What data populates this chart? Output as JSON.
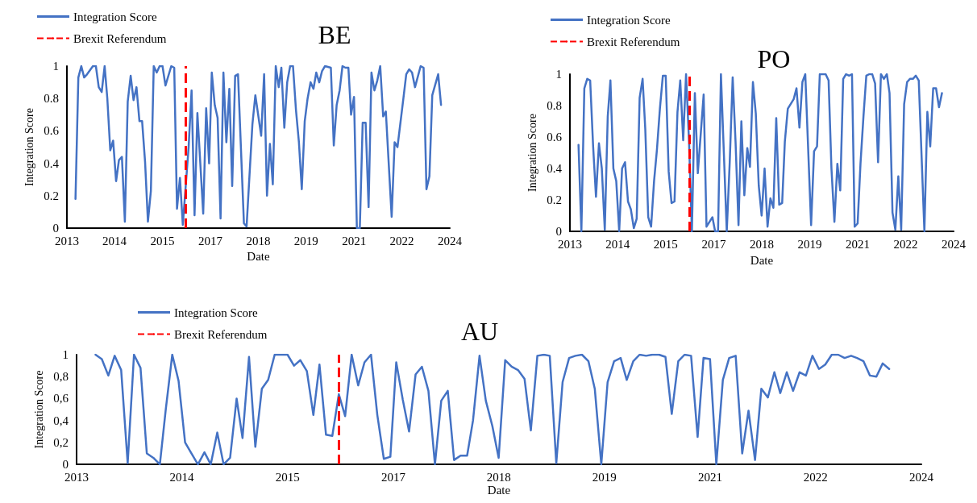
{
  "chart_data": [
    {
      "type": "line",
      "title": "BE",
      "xlabel": "Date",
      "ylabel": "Integration Score",
      "xlim": [
        "2013",
        "2024"
      ],
      "xticks": [
        "2013",
        {
          "value": "2014-05-16",
          "label": "2014"
        },
        {
          "value": "2015-10-01",
          "label": "2015"
        },
        {
          "value": "2017-02-15",
          "label": "2017"
        },
        {
          "value": "2018-07-02",
          "label": "2018"
        },
        {
          "value": "2019-11-16",
          "label": "2019"
        },
        {
          "value": "2021-04-02",
          "label": "2021"
        },
        {
          "value": "2022-08-16",
          "label": "2022"
        },
        "2024"
      ],
      "ylim": [
        0,
        1
      ],
      "yticks": [
        0,
        0.2,
        0.4,
        0.6,
        0.8,
        1
      ],
      "grid": false,
      "legend": "top left",
      "marker": "none",
      "line_style": "solid",
      "series": [
        {
          "name": "Integration Score",
          "color": "#4472c4",
          "x": [
            "2013-04",
            "2013-05",
            "2013-06",
            "2013-07",
            "2013-08",
            "2013-10",
            "2013-11",
            "2013-12",
            "2014-01",
            "2014-02",
            "2014-03",
            "2014-04",
            "2014-05",
            "2014-06",
            "2014-07",
            "2014-08",
            "2014-09",
            "2014-10",
            "2014-11",
            "2014-12",
            "2015-01",
            "2015-02",
            "2015-03",
            "2015-04",
            "2015-05",
            "2015-06",
            "2015-07",
            "2015-08",
            "2015-09",
            "2015-10",
            "2015-11",
            "2016-01",
            "2016-02",
            "2016-03",
            "2016-04",
            "2016-05",
            "2016-07",
            "2016-08",
            "2016-09",
            "2016-10",
            "2016-12",
            "2017-01",
            "2017-02",
            "2017-03",
            "2017-04",
            "2017-05",
            "2017-06",
            "2017-07",
            "2017-08",
            "2017-09",
            "2017-10",
            "2017-11",
            "2017-12",
            "2018-02",
            "2018-03",
            "2018-05",
            "2018-06",
            "2018-08",
            "2018-09",
            "2018-10",
            "2018-11",
            "2018-12",
            "2019-01",
            "2019-02",
            "2019-03",
            "2019-04",
            "2019-05",
            "2019-06",
            "2019-07",
            "2019-08",
            "2019-09",
            "2019-10",
            "2019-11",
            "2019-12",
            "2020-01",
            "2020-02",
            "2020-03",
            "2020-04",
            "2020-05",
            "2020-06",
            "2020-08",
            "2020-09",
            "2020-10",
            "2020-11",
            "2020-12",
            "2021-01",
            "2021-02",
            "2021-03",
            "2021-04",
            "2021-05",
            "2021-06",
            "2021-07",
            "2021-08",
            "2021-09",
            "2021-10",
            "2021-11",
            "2021-12",
            "2022-01",
            "2022-02",
            "2022-03",
            "2022-05",
            "2022-06",
            "2022-07",
            "2022-09",
            "2022-10",
            "2022-11",
            "2022-12",
            "2023-01",
            "2023-03",
            "2023-04",
            "2023-05",
            "2023-06",
            "2023-07",
            "2023-09",
            "2023-10"
          ],
          "values": [
            0.18,
            0.93,
            1.0,
            0.93,
            0.95,
            1.0,
            1.0,
            0.87,
            0.84,
            1.0,
            0.8,
            0.48,
            0.54,
            0.29,
            0.42,
            0.44,
            0.04,
            0.78,
            0.94,
            0.79,
            0.87,
            0.66,
            0.66,
            0.41,
            0.04,
            0.23,
            1.0,
            0.96,
            1.0,
            1.0,
            0.88,
            1.0,
            0.99,
            0.12,
            0.31,
            0.02,
            0.5,
            0.85,
            0.08,
            0.71,
            0.09,
            0.74,
            0.4,
            0.96,
            0.76,
            0.68,
            0.06,
            0.96,
            0.53,
            0.86,
            0.26,
            0.94,
            0.95,
            0.03,
            0.01,
            0.64,
            0.82,
            0.57,
            0.95,
            0.2,
            0.52,
            0.27,
            1.0,
            0.87,
            0.99,
            0.62,
            0.9,
            1.0,
            1.0,
            0.73,
            0.53,
            0.24,
            0.66,
            0.8,
            0.9,
            0.86,
            0.96,
            0.9,
            0.97,
            1.0,
            0.99,
            0.51,
            0.76,
            0.85,
            1.0,
            0.99,
            0.99,
            0.7,
            0.81,
            0.0,
            0.0,
            0.65,
            0.65,
            0.13,
            0.96,
            0.85,
            0.91,
            1.0,
            0.69,
            0.72,
            0.07,
            0.53,
            0.5,
            0.8,
            0.95,
            0.98,
            0.96,
            0.87,
            1.0,
            0.99,
            0.24,
            0.32,
            0.82,
            0.95,
            0.76
          ]
        }
      ],
      "ref_lines": [
        {
          "axis": "x",
          "value": "2016-06",
          "label": "Brexit Referendum",
          "color": "#ff0000",
          "line_style": "dashed"
        }
      ]
    },
    {
      "type": "line",
      "title": "PO",
      "xlabel": "Date",
      "ylabel": "Integration Score",
      "xlim": [
        "2013",
        "2024"
      ],
      "xticks": [
        "2013",
        {
          "value": "2014-05-16",
          "label": "2014"
        },
        {
          "value": "2015-10-01",
          "label": "2015"
        },
        {
          "value": "2017-02-15",
          "label": "2017"
        },
        {
          "value": "2018-07-02",
          "label": "2018"
        },
        {
          "value": "2019-11-16",
          "label": "2019"
        },
        {
          "value": "2021-04-02",
          "label": "2021"
        },
        {
          "value": "2022-08-16",
          "label": "2022"
        },
        "2024"
      ],
      "ylim": [
        0,
        1
      ],
      "yticks": [
        0,
        0.2,
        0.4,
        0.6,
        0.8,
        1
      ],
      "grid": false,
      "legend": "top left",
      "marker": "none",
      "line_style": "solid",
      "series": [
        {
          "name": "Integration Score",
          "color": "#4472c4",
          "x": [
            "2013-04",
            "2013-05",
            "2013-06",
            "2013-07",
            "2013-08",
            "2013-09",
            "2013-10",
            "2013-11",
            "2013-12",
            "2014-01",
            "2014-02",
            "2014-03",
            "2014-04",
            "2014-05",
            "2014-06",
            "2014-07",
            "2014-08",
            "2014-09",
            "2014-10",
            "2014-11",
            "2014-12",
            "2015-01",
            "2015-02",
            "2015-03",
            "2015-04",
            "2015-05",
            "2015-06",
            "2015-07",
            "2015-08",
            "2015-09",
            "2015-10",
            "2015-11",
            "2015-12",
            "2016-01",
            "2016-02",
            "2016-03",
            "2016-04",
            "2016-05",
            "2016-06",
            "2016-07",
            "2016-08",
            "2016-09",
            "2016-11",
            "2016-12",
            "2017-02",
            "2017-03",
            "2017-04",
            "2017-05",
            "2017-07",
            "2017-08",
            "2017-09",
            "2017-10",
            "2017-11",
            "2017-12",
            "2018-01",
            "2018-02",
            "2018-03",
            "2018-04",
            "2018-05",
            "2018-06",
            "2018-07",
            "2018-08",
            "2018-09",
            "2018-10",
            "2018-11",
            "2018-12",
            "2019-01",
            "2019-02",
            "2019-03",
            "2019-04",
            "2019-06",
            "2019-07",
            "2019-08",
            "2019-09",
            "2019-10",
            "2019-12",
            "2020-01",
            "2020-02",
            "2020-03",
            "2020-05",
            "2020-06",
            "2020-07",
            "2020-08",
            "2020-09",
            "2020-10",
            "2020-11",
            "2020-12",
            "2021-01",
            "2021-02",
            "2021-03",
            "2021-04",
            "2021-05",
            "2021-06",
            "2021-07",
            "2021-08",
            "2021-09",
            "2021-10",
            "2021-11",
            "2021-12",
            "2022-01",
            "2022-02",
            "2022-03",
            "2022-04",
            "2022-05",
            "2022-06",
            "2022-07",
            "2022-08",
            "2022-09",
            "2022-10",
            "2022-11",
            "2022-12",
            "2023-01",
            "2023-03",
            "2023-04",
            "2023-05",
            "2023-06",
            "2023-07",
            "2023-08",
            "2023-09"
          ],
          "values": [
            0.55,
            0.0,
            0.91,
            0.97,
            0.96,
            0.54,
            0.22,
            0.56,
            0.4,
            0.01,
            0.73,
            0.96,
            0.4,
            0.32,
            0.0,
            0.4,
            0.44,
            0.19,
            0.14,
            0.02,
            0.08,
            0.85,
            0.97,
            0.65,
            0.09,
            0.03,
            0.32,
            0.52,
            0.78,
            0.99,
            0.99,
            0.38,
            0.18,
            0.19,
            0.76,
            0.96,
            0.58,
            1.0,
            0.57,
            0.0,
            0.88,
            0.37,
            0.87,
            0.03,
            0.09,
            0.0,
            0.0,
            1.0,
            0.0,
            0.44,
            0.98,
            0.57,
            0.04,
            0.7,
            0.23,
            0.53,
            0.41,
            0.95,
            0.75,
            0.29,
            0.1,
            0.4,
            0.03,
            0.21,
            0.15,
            0.72,
            0.17,
            0.18,
            0.57,
            0.78,
            0.84,
            0.91,
            0.66,
            0.95,
            1.0,
            0.04,
            0.51,
            0.54,
            1.0,
            1.0,
            0.96,
            0.4,
            0.06,
            0.43,
            0.26,
            0.97,
            1.0,
            0.99,
            1.0,
            0.03,
            0.05,
            0.43,
            0.73,
            0.99,
            1.0,
            1.0,
            0.94,
            0.44,
            1.0,
            0.97,
            1.0,
            0.88,
            0.12,
            0.01,
            0.35,
            0.01,
            0.81,
            0.95,
            0.97,
            0.97,
            0.99,
            0.96,
            0.0,
            0.76,
            0.54,
            0.91,
            0.91,
            0.79,
            0.88
          ]
        }
      ],
      "ref_lines": [
        {
          "axis": "x",
          "value": "2016-06",
          "label": "Brexit Referendum",
          "color": "#ff0000",
          "line_style": "dashed"
        }
      ]
    },
    {
      "type": "line",
      "title": "AU",
      "xlabel": "Date",
      "ylabel": "Integration Score",
      "xlim": [
        "2013",
        "2024"
      ],
      "xticks": [
        "2013",
        {
          "value": "2014-05-16",
          "label": "2014"
        },
        {
          "value": "2015-10-01",
          "label": "2015"
        },
        {
          "value": "2017-02-15",
          "label": "2017"
        },
        {
          "value": "2018-07-02",
          "label": "2018"
        },
        {
          "value": "2019-11-16",
          "label": "2019"
        },
        {
          "value": "2021-04-02",
          "label": "2021"
        },
        {
          "value": "2022-08-16",
          "label": "2022"
        },
        "2024"
      ],
      "ylim": [
        0,
        1
      ],
      "yticks": [
        0,
        {
          "value": 0.2,
          "label": "0,2"
        },
        {
          "value": 0.4,
          "label": "0,4"
        },
        {
          "value": 0.6,
          "label": "0,6"
        },
        {
          "value": 0.8,
          "label": "0,8"
        },
        1
      ],
      "grid": false,
      "legend": "top left",
      "marker": "none",
      "line_style": "solid",
      "series": [
        {
          "name": "Integration Score",
          "color": "#4472c4",
          "x": [
            "2013-04",
            "2013-05",
            "2013-06",
            "2013-07",
            "2013-08",
            "2013-09",
            "2013-10",
            "2013-11",
            "2013-12",
            "2014-01",
            "2014-02",
            "2014-03",
            "2014-04",
            "2014-05",
            "2014-06",
            "2014-07",
            "2014-08",
            "2014-09",
            "2014-10",
            "2014-11",
            "2014-12",
            "2015-01",
            "2015-02",
            "2015-03",
            "2015-04",
            "2015-05",
            "2015-06",
            "2015-07",
            "2015-08",
            "2015-09",
            "2015-10",
            "2015-11",
            "2015-12",
            "2016-01",
            "2016-02",
            "2016-03",
            "2016-04",
            "2016-05",
            "2016-06",
            "2016-07",
            "2016-08",
            "2016-09",
            "2016-10",
            "2016-11",
            "2016-12",
            "2017-01",
            "2017-02",
            "2017-03",
            "2017-04",
            "2017-05",
            "2017-06",
            "2017-07",
            "2017-08",
            "2017-09",
            "2017-10",
            "2017-11",
            "2017-12",
            "2018-01",
            "2018-02",
            "2018-03",
            "2018-04",
            "2018-05",
            "2018-06",
            "2018-07",
            "2018-08",
            "2018-09",
            "2018-10",
            "2018-11",
            "2018-12",
            "2019-01",
            "2019-02",
            "2019-03",
            "2019-04",
            "2019-05",
            "2019-06",
            "2019-07",
            "2019-08",
            "2019-09",
            "2019-10",
            "2019-11",
            "2019-12",
            "2020-01",
            "2020-02",
            "2020-03",
            "2020-04",
            "2020-05",
            "2020-06",
            "2020-07",
            "2020-08",
            "2020-09",
            "2020-10",
            "2020-11",
            "2020-12",
            "2021-01",
            "2021-02",
            "2021-03",
            "2021-04",
            "2021-05",
            "2021-06",
            "2021-07",
            "2021-08",
            "2021-09",
            "2021-10",
            "2021-11",
            "2021-12",
            "2022-01",
            "2022-02",
            "2022-03",
            "2022-04",
            "2022-05",
            "2022-06",
            "2022-07",
            "2022-08",
            "2022-09",
            "2022-10",
            "2022-11",
            "2022-12",
            "2023-01",
            "2023-02",
            "2023-03",
            "2023-04",
            "2023-05",
            "2023-06",
            "2023-07",
            "2023-08"
          ],
          "values": [
            1.0,
            0.96,
            0.81,
            0.99,
            0.86,
            0.01,
            1.0,
            0.88,
            0.1,
            0.06,
            0.0,
            0.5,
            1.0,
            0.76,
            0.2,
            0.1,
            0.0,
            0.11,
            0.0,
            0.29,
            0.0,
            0.06,
            0.6,
            0.24,
            0.98,
            0.16,
            0.69,
            0.77,
            1.0,
            1.0,
            1.0,
            0.9,
            0.95,
            0.85,
            0.45,
            0.91,
            0.27,
            0.26,
            0.64,
            0.44,
            1.0,
            0.72,
            0.93,
            1.0,
            0.45,
            0.05,
            0.07,
            0.93,
            0.59,
            0.3,
            0.82,
            0.89,
            0.67,
            0.0,
            0.58,
            0.67,
            0.04,
            0.08,
            0.08,
            0.4,
            0.99,
            0.58,
            0.35,
            0.06,
            0.95,
            0.89,
            0.86,
            0.78,
            0.31,
            0.99,
            1.0,
            0.99,
            0.01,
            0.75,
            0.97,
            0.99,
            1.0,
            0.94,
            0.69,
            0.0,
            0.75,
            0.94,
            0.97,
            0.77,
            0.94,
            1.0,
            0.99,
            1.0,
            1.0,
            0.98,
            0.46,
            0.94,
            1.0,
            0.99,
            0.25,
            0.97,
            0.96,
            0.0,
            0.77,
            0.97,
            0.99,
            0.1,
            0.49,
            0.04,
            0.69,
            0.61,
            0.84,
            0.65,
            0.84,
            0.67,
            0.84,
            0.81,
            0.99,
            0.87,
            0.91,
            1.0,
            1.0,
            0.97,
            0.99,
            0.97,
            0.94,
            0.81,
            0.8,
            0.92,
            0.87
          ]
        }
      ],
      "ref_lines": [
        {
          "axis": "x",
          "value": "2016-06",
          "label": "Brexit Referendum",
          "color": "#ff0000",
          "line_style": "dashed"
        }
      ]
    }
  ]
}
